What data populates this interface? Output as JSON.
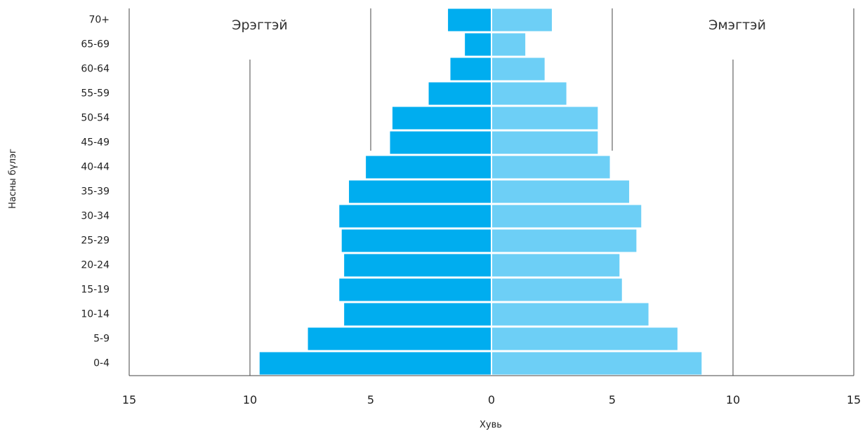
{
  "chart_data": {
    "type": "bar",
    "orientation": "horizontal",
    "xlabel": "Хувь",
    "ylabel": "Насны бүлэг",
    "xlim": [
      -15,
      15
    ],
    "xticks": [
      -15,
      -10,
      -5,
      0,
      5,
      10,
      15
    ],
    "xtick_labels": [
      "15",
      "10",
      "5",
      "0",
      "5",
      "10",
      "15"
    ],
    "categories": [
      "0-4",
      "5-9",
      "10-14",
      "15-19",
      "20-24",
      "25-29",
      "30-34",
      "35-39",
      "40-44",
      "45-49",
      "50-54",
      "55-59",
      "60-64",
      "65-69",
      "70+"
    ],
    "series": [
      {
        "name": "Эрэгтэй",
        "color": "#00adef",
        "side": "left",
        "values": [
          9.6,
          7.6,
          6.1,
          6.3,
          6.1,
          6.2,
          6.3,
          5.9,
          5.2,
          4.2,
          4.1,
          2.6,
          1.7,
          1.1,
          1.8
        ]
      },
      {
        "name": "Эмэгтэй",
        "color": "#6dcff6",
        "side": "right",
        "values": [
          8.7,
          7.7,
          6.5,
          5.4,
          5.3,
          6.0,
          6.2,
          5.7,
          4.9,
          4.4,
          4.4,
          3.1,
          2.2,
          1.4,
          2.5
        ]
      }
    ],
    "grid": true
  }
}
